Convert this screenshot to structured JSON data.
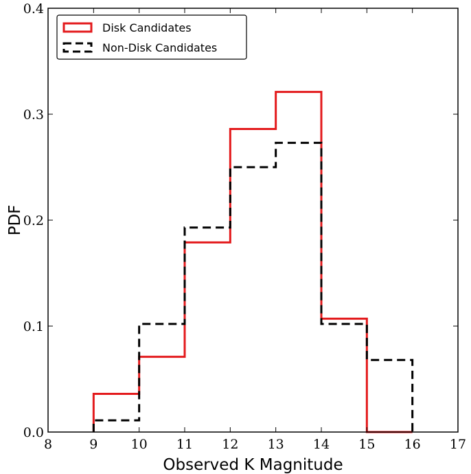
{
  "chart_data": {
    "type": "step-histogram",
    "xlabel": "Observed K Magnitude",
    "ylabel": "PDF",
    "xlim": [
      8,
      17
    ],
    "ylim": [
      0.0,
      0.4
    ],
    "xticks": [
      8,
      9,
      10,
      11,
      12,
      13,
      14,
      15,
      16,
      17
    ],
    "xtick_labels": [
      "8",
      "9",
      "10",
      "11",
      "12",
      "13",
      "14",
      "15",
      "16",
      "17"
    ],
    "yticks": [
      0.0,
      0.1,
      0.2,
      0.3,
      0.4
    ],
    "ytick_labels": [
      "0.0",
      "0.1",
      "0.2",
      "0.3",
      "0.4"
    ],
    "bin_edges": [
      9,
      10,
      11,
      12,
      13,
      14,
      15,
      16
    ],
    "legend_position": "top-left",
    "grid": false,
    "series": [
      {
        "name": "Disk Candidates",
        "color": "#e31a1c",
        "line_style": "solid",
        "values": [
          0.036,
          0.071,
          0.179,
          0.286,
          0.321,
          0.107,
          0.0
        ]
      },
      {
        "name": "Non-Disk Candidates",
        "color": "#000000",
        "line_style": "dashed",
        "values": [
          0.011,
          0.102,
          0.193,
          0.25,
          0.273,
          0.102,
          0.068
        ]
      }
    ]
  }
}
